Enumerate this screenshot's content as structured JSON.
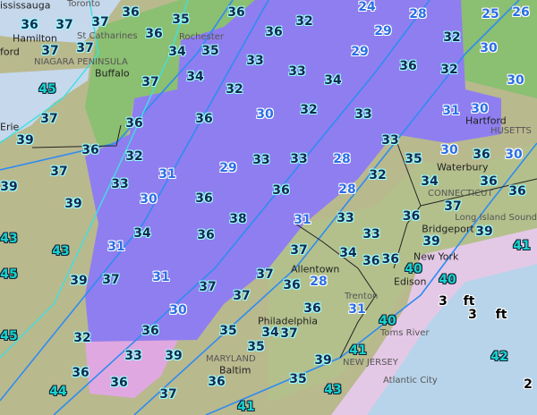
{
  "map": {
    "colors": {
      "terrain": "#b9b98e",
      "snow": "#8f7ef0",
      "lake": "#c5d8ec",
      "ocean": "#b8d4ea",
      "mix": "#e4c9e6",
      "rain": "#6fc065",
      "isotherm": "#2f8cf0"
    },
    "temperatures": [
      36,
      37,
      37,
      36,
      35,
      36,
      36,
      32,
      24,
      28,
      25,
      26,
      37,
      37,
      34,
      35,
      33,
      36,
      45,
      37,
      34,
      32,
      33,
      34,
      29,
      32,
      29,
      36,
      32,
      30,
      30,
      37,
      36,
      36,
      30,
      32,
      33,
      31,
      30,
      39,
      36,
      32,
      31,
      29,
      33,
      33,
      28,
      32,
      35,
      33,
      30,
      36,
      30,
      37,
      33,
      30,
      36,
      38,
      36,
      28,
      34,
      36,
      36,
      39,
      39,
      36,
      37,
      31,
      33,
      43,
      43,
      34,
      36,
      31,
      33,
      36,
      39,
      39,
      41,
      45,
      39,
      37,
      31,
      37,
      37,
      37,
      36,
      37,
      34,
      36,
      40,
      40,
      28,
      31,
      45,
      32,
      30,
      36,
      35,
      36,
      34,
      37,
      40,
      33,
      39,
      35,
      39,
      41,
      42,
      36,
      36,
      36,
      37,
      35,
      43,
      44,
      41,
      2
    ],
    "snow_labels": [
      "3",
      "ft",
      "3",
      "ft"
    ],
    "places": [
      "Toronto",
      "ississauga",
      "Hamilton",
      "St Catharines",
      "NIAGARA PENINSULA",
      "Buffalo",
      "Rochester",
      "Erie",
      "ford",
      "Hartford",
      "Waterbury",
      "CONNECTICUT",
      "HUSETTS",
      "Bridgeport",
      "Long Island Sound",
      "New York",
      "Edison",
      "Allentown",
      "Trenton",
      "Philadelphia",
      "Toms River",
      "NEW JERSEY",
      "Atlantic City",
      "Baltim",
      "MARYLAND"
    ]
  }
}
